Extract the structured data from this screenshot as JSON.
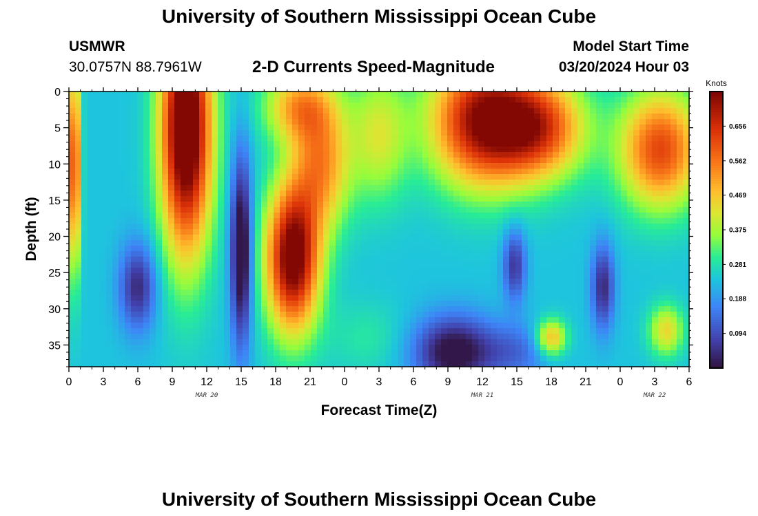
{
  "header": {
    "title_top": "University of Southern Mississippi Ocean Cube",
    "title_bottom": "University of Southern Mississippi Ocean Cube",
    "station": "USMWR",
    "coords": "30.0757N  88.7961W",
    "subtitle": "2-D Currents Speed-Magnitude",
    "model_start_label": "Model Start Time",
    "model_start_value": "03/20/2024 Hour 03"
  },
  "chart_data": {
    "type": "heatmap",
    "xlabel": "Forecast Time(Z)",
    "ylabel": "Depth (ft)",
    "xlim": [
      0,
      54
    ],
    "ylim": [
      38,
      0
    ],
    "x_ticks": [
      0,
      3,
      6,
      9,
      12,
      15,
      18,
      21,
      24,
      27,
      30,
      33,
      36,
      39,
      42,
      45,
      48,
      51,
      54
    ],
    "x_tick_labels": [
      "0",
      "3",
      "6",
      "9",
      "12",
      "15",
      "18",
      "21",
      "0",
      "3",
      "6",
      "9",
      "12",
      "15",
      "18",
      "21",
      "0",
      "3",
      "6"
    ],
    "date_labels": [
      {
        "x": 12,
        "label": "MAR 20"
      },
      {
        "x": 36,
        "label": "MAR 21"
      },
      {
        "x": 51,
        "label": "MAR 22"
      }
    ],
    "y_ticks": [
      0,
      5,
      10,
      15,
      20,
      25,
      30,
      35
    ],
    "y_tick_labels": [
      "0",
      "5",
      "10",
      "15",
      "20",
      "25",
      "30",
      "35"
    ],
    "colorbar": {
      "title": "Knots",
      "range": [
        0.0,
        0.75
      ],
      "tick_values": [
        0.094,
        0.188,
        0.281,
        0.375,
        0.469,
        0.562,
        0.656
      ],
      "tick_labels": [
        "0.094",
        "0.188",
        "0.281",
        "0.375",
        "0.469",
        "0.562",
        "0.656"
      ]
    },
    "grid": false,
    "field_features": [
      {
        "t": 0.5,
        "d": 10,
        "st": 0.5,
        "sd": 14,
        "v": 0.42
      },
      {
        "t": 6,
        "d": 27,
        "st": 1.6,
        "sd": 6,
        "v": -0.2
      },
      {
        "t": 10.2,
        "d": 5,
        "st": 2.2,
        "sd": 17,
        "v": 0.62
      },
      {
        "t": 15,
        "d": 22,
        "st": 0.9,
        "sd": 13,
        "v": -0.3
      },
      {
        "t": 19.5,
        "d": 23,
        "st": 2.3,
        "sd": 10,
        "v": 0.55
      },
      {
        "t": 22,
        "d": 10,
        "st": 2.5,
        "sd": 9,
        "v": 0.28
      },
      {
        "t": 20,
        "d": 2,
        "st": 3,
        "sd": 5,
        "v": 0.25
      },
      {
        "t": 27,
        "d": 6,
        "st": 2.5,
        "sd": 9,
        "v": 0.17
      },
      {
        "t": 26,
        "d": 34,
        "st": 3.5,
        "sd": 5,
        "v": 0.05
      },
      {
        "t": 33.5,
        "d": 36,
        "st": 3.5,
        "sd": 5,
        "v": -0.26
      },
      {
        "t": 36,
        "d": 4,
        "st": 4.5,
        "sd": 9,
        "v": 0.48
      },
      {
        "t": 41,
        "d": 5,
        "st": 4,
        "sd": 7,
        "v": 0.35
      },
      {
        "t": 38.8,
        "d": 24,
        "st": 1,
        "sd": 5,
        "v": -0.18
      },
      {
        "t": 39,
        "d": 36,
        "st": 3,
        "sd": 4,
        "v": -0.1
      },
      {
        "t": 42,
        "d": 34,
        "st": 1.3,
        "sd": 2.5,
        "v": 0.25
      },
      {
        "t": 46.5,
        "d": 27,
        "st": 1,
        "sd": 6,
        "v": -0.2
      },
      {
        "t": 51.5,
        "d": 8,
        "st": 3.5,
        "sd": 8,
        "v": 0.38
      },
      {
        "t": 52,
        "d": 33,
        "st": 1.5,
        "sd": 3.5,
        "v": 0.2
      }
    ]
  }
}
